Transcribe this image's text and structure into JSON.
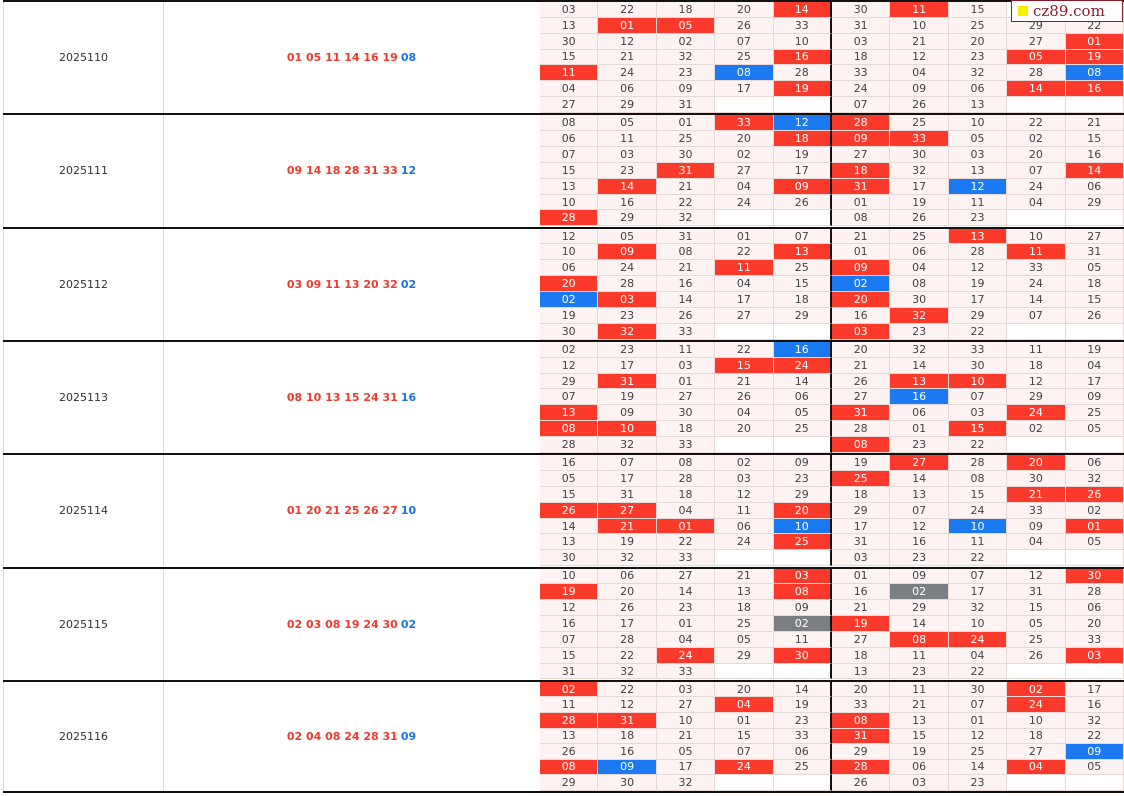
{
  "watermark": "cz89.com",
  "colors": {
    "red": "#fb3a2c",
    "blue": "#1b7af2",
    "gray": "#7b7e82"
  },
  "legend": {
    "r": "red highlight",
    "b": "blue highlight",
    "g": "gray highlight"
  },
  "draws": [
    {
      "issue": "2025110",
      "main": "01 05 11 14 16 19",
      "special": "08",
      "rows": [
        [
          "03",
          "22",
          "18",
          "20",
          "14r",
          "30",
          "11r",
          "15",
          "",
          ""
        ],
        [
          "13",
          "01r",
          "05r",
          "26",
          "33",
          "31",
          "10",
          "25",
          "29",
          "22"
        ],
        [
          "30",
          "12",
          "02",
          "07",
          "10",
          "03",
          "21",
          "20",
          "27",
          "01r"
        ],
        [
          "15",
          "21",
          "32",
          "25",
          "16r",
          "18",
          "12",
          "23",
          "05r",
          "19r"
        ],
        [
          "11r",
          "24",
          "23",
          "08b",
          "28",
          "33",
          "04",
          "32",
          "28",
          "08b"
        ],
        [
          "04",
          "06",
          "09",
          "17",
          "19r",
          "24",
          "09",
          "06",
          "14r",
          "16r"
        ],
        [
          "27",
          "29",
          "31",
          "",
          "",
          "07",
          "26",
          "13",
          "",
          ""
        ]
      ]
    },
    {
      "issue": "2025111",
      "main": "09 14 18 28 31 33",
      "special": "12",
      "rows": [
        [
          "08",
          "05",
          "01",
          "33r",
          "12b",
          "28r",
          "25",
          "10",
          "22",
          "21"
        ],
        [
          "06",
          "11",
          "25",
          "20",
          "18r",
          "09r",
          "33r",
          "05",
          "02",
          "15"
        ],
        [
          "07",
          "03",
          "30",
          "02",
          "19",
          "27",
          "30",
          "03",
          "20",
          "16"
        ],
        [
          "15",
          "23",
          "31r",
          "27",
          "17",
          "18r",
          "32",
          "13",
          "07",
          "14r"
        ],
        [
          "13",
          "14r",
          "21",
          "04",
          "09r",
          "31r",
          "17",
          "12b",
          "24",
          "06"
        ],
        [
          "10",
          "16",
          "22",
          "24",
          "26",
          "01",
          "19",
          "11",
          "04",
          "29"
        ],
        [
          "28r",
          "29",
          "32",
          "",
          "",
          "08",
          "26",
          "23",
          "",
          ""
        ]
      ]
    },
    {
      "issue": "2025112",
      "main": "03 09 11 13 20 32",
      "special": "02",
      "rows": [
        [
          "12",
          "05",
          "31",
          "01",
          "07",
          "21",
          "25",
          "13r",
          "10",
          "27"
        ],
        [
          "10",
          "09r",
          "08",
          "22",
          "13r",
          "01",
          "06",
          "28",
          "11r",
          "31"
        ],
        [
          "06",
          "24",
          "21",
          "11r",
          "25",
          "09r",
          "04",
          "12",
          "33",
          "05"
        ],
        [
          "20r",
          "28",
          "16",
          "04",
          "15",
          "02b",
          "08",
          "19",
          "24",
          "18"
        ],
        [
          "02b",
          "03r",
          "14",
          "17",
          "18",
          "20r",
          "30",
          "17",
          "14",
          "15"
        ],
        [
          "19",
          "23",
          "26",
          "27",
          "29",
          "16",
          "32r",
          "29",
          "07",
          "26"
        ],
        [
          "30",
          "32r",
          "33",
          "",
          "",
          "03r",
          "23",
          "22",
          "",
          ""
        ]
      ]
    },
    {
      "issue": "2025113",
      "main": "08 10 13 15 24 31",
      "special": "16",
      "rows": [
        [
          "02",
          "23",
          "11",
          "22",
          "16b",
          "20",
          "32",
          "33",
          "11",
          "19"
        ],
        [
          "12",
          "17",
          "03",
          "15r",
          "24r",
          "21",
          "14",
          "30",
          "18",
          "04"
        ],
        [
          "29",
          "31r",
          "01",
          "21",
          "14",
          "26",
          "13r",
          "10r",
          "12",
          "17"
        ],
        [
          "07",
          "19",
          "27",
          "26",
          "06",
          "27",
          "16b",
          "07",
          "29",
          "09"
        ],
        [
          "13r",
          "09",
          "30",
          "04",
          "05",
          "31r",
          "06",
          "03",
          "24r",
          "25"
        ],
        [
          "08r",
          "10r",
          "18",
          "20",
          "25",
          "28",
          "01",
          "15r",
          "02",
          "05"
        ],
        [
          "28",
          "32",
          "33",
          "",
          "",
          "08r",
          "23",
          "22",
          "",
          ""
        ]
      ]
    },
    {
      "issue": "2025114",
      "main": "01 20 21 25 26 27",
      "special": "10",
      "rows": [
        [
          "16",
          "07",
          "08",
          "02",
          "09",
          "19",
          "27r",
          "28",
          "20r",
          "06"
        ],
        [
          "05",
          "17",
          "28",
          "03",
          "23",
          "25r",
          "14",
          "08",
          "30",
          "32"
        ],
        [
          "15",
          "31",
          "18",
          "12",
          "29",
          "18",
          "13",
          "15",
          "21r",
          "26r"
        ],
        [
          "26r",
          "27r",
          "04",
          "11",
          "20r",
          "29",
          "07",
          "24",
          "33",
          "02"
        ],
        [
          "14",
          "21r",
          "01r",
          "06",
          "10b",
          "17",
          "12",
          "10b",
          "09",
          "01r"
        ],
        [
          "13",
          "19",
          "22",
          "24",
          "25r",
          "31",
          "16",
          "11",
          "04",
          "05"
        ],
        [
          "30",
          "32",
          "33",
          "",
          "",
          "03",
          "23",
          "22",
          "",
          ""
        ]
      ]
    },
    {
      "issue": "2025115",
      "main": "02 03 08 19 24 30",
      "special": "02",
      "rows": [
        [
          "10",
          "06",
          "27",
          "21",
          "03r",
          "01",
          "09",
          "07",
          "12",
          "30r"
        ],
        [
          "19r",
          "20",
          "14",
          "13",
          "08r",
          "16",
          "02g",
          "17",
          "31",
          "28"
        ],
        [
          "12",
          "26",
          "23",
          "18",
          "09",
          "21",
          "29",
          "32",
          "15",
          "06"
        ],
        [
          "16",
          "17",
          "01",
          "25",
          "02g",
          "19r",
          "14",
          "10",
          "05",
          "20"
        ],
        [
          "07",
          "28",
          "04",
          "05",
          "11",
          "27",
          "08r",
          "24r",
          "25",
          "33"
        ],
        [
          "15",
          "22",
          "24r",
          "29",
          "30r",
          "18",
          "11",
          "04",
          "26",
          "03r"
        ],
        [
          "31",
          "32",
          "33",
          "",
          "",
          "13",
          "23",
          "22",
          "",
          ""
        ]
      ]
    },
    {
      "issue": "2025116",
      "main": "02 04 08 24 28 31",
      "special": "09",
      "rows": [
        [
          "02r",
          "22",
          "03",
          "20",
          "14",
          "20",
          "11",
          "30",
          "02r",
          "17"
        ],
        [
          "11",
          "12",
          "27",
          "04r",
          "19",
          "33",
          "21",
          "07",
          "24r",
          "16"
        ],
        [
          "28r",
          "31r",
          "10",
          "01",
          "23",
          "08r",
          "13",
          "01",
          "10",
          "32"
        ],
        [
          "13",
          "18",
          "21",
          "15",
          "33",
          "31r",
          "15",
          "12",
          "18",
          "22"
        ],
        [
          "26",
          "16",
          "05",
          "07",
          "06",
          "29",
          "19",
          "25",
          "27",
          "09b"
        ],
        [
          "08r",
          "09b",
          "17",
          "24r",
          "25",
          "28r",
          "06",
          "14",
          "04r",
          "05"
        ],
        [
          "29",
          "30",
          "32",
          "",
          "",
          "26",
          "03",
          "23",
          "",
          ""
        ]
      ]
    }
  ]
}
